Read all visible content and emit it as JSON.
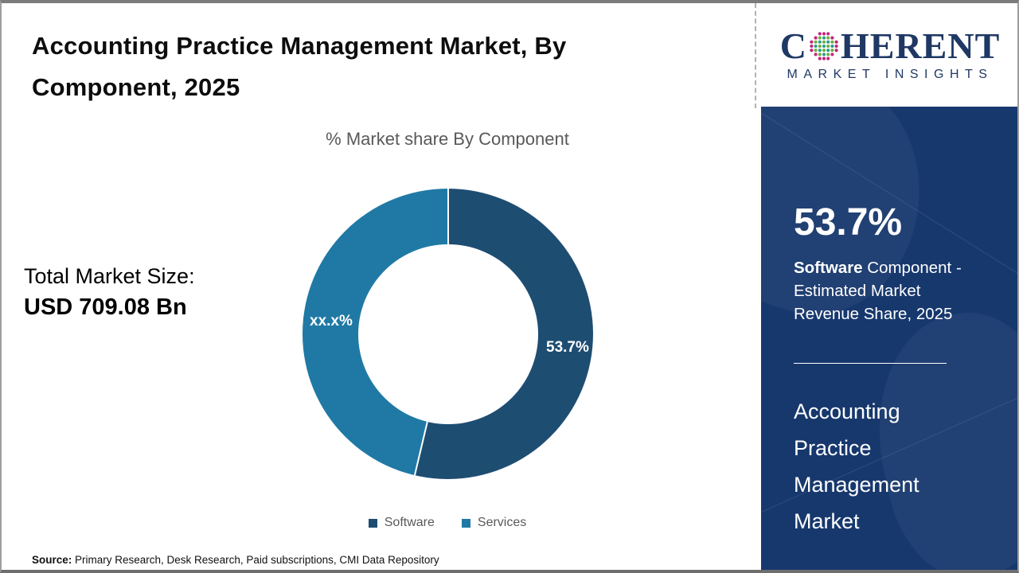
{
  "header": {
    "title": "Accounting Practice Management Market, By Component, 2025"
  },
  "chart_data": {
    "type": "pie",
    "subtype": "donut",
    "title": "% Market share By Component",
    "categories": [
      "Software",
      "Services"
    ],
    "values": [
      53.7,
      46.3
    ],
    "data_labels": [
      "53.7%",
      "xx.x%"
    ],
    "colors": [
      "#1e4d72",
      "#2079a5"
    ],
    "legend_position": "bottom",
    "start_angle_deg": 0,
    "direction": "clockwise"
  },
  "main": {
    "subtitle": "% Market share By Component",
    "total_label": "Total Market Size:",
    "total_value": "USD 709.08 Bn",
    "source_label": "Source:",
    "source_text": " Primary Research, Desk Research, Paid subscriptions, CMI Data Repository"
  },
  "sidebar": {
    "stat_value": "53.7%",
    "stat_desc_bold": "Software",
    "stat_desc_rest": " Component - Estimated Market Revenue Share, 2025",
    "market_name": "Accounting Practice Management Market",
    "background_color": "#17386d"
  },
  "logo": {
    "letter_c": "C",
    "letters_rest": "HERENT",
    "subtext": "MARKET INSIGHTS",
    "navy": "#1f3864",
    "sphere_colors": {
      "outer": "#c2247c",
      "teal": "#2a9d8f",
      "green": "#6fae3f"
    }
  }
}
